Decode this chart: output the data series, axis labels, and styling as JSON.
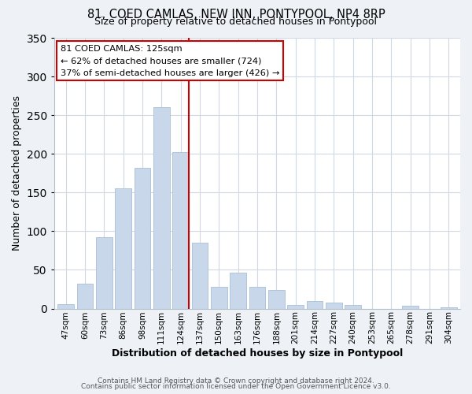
{
  "title": "81, COED CAMLAS, NEW INN, PONTYPOOL, NP4 8RP",
  "subtitle": "Size of property relative to detached houses in Pontypool",
  "xlabel": "Distribution of detached houses by size in Pontypool",
  "ylabel": "Number of detached properties",
  "bar_color": "#c8d8ea",
  "bar_edge_color": "#a8c0d4",
  "categories": [
    "47sqm",
    "60sqm",
    "73sqm",
    "86sqm",
    "98sqm",
    "111sqm",
    "124sqm",
    "137sqm",
    "150sqm",
    "163sqm",
    "176sqm",
    "188sqm",
    "201sqm",
    "214sqm",
    "227sqm",
    "240sqm",
    "253sqm",
    "265sqm",
    "278sqm",
    "291sqm",
    "304sqm"
  ],
  "values": [
    6,
    32,
    92,
    155,
    182,
    260,
    202,
    85,
    28,
    46,
    28,
    24,
    5,
    10,
    8,
    5,
    0,
    0,
    4,
    0,
    2
  ],
  "vline_index": 6,
  "vline_color": "#cc0000",
  "ylim": [
    0,
    350
  ],
  "yticks": [
    0,
    50,
    100,
    150,
    200,
    250,
    300,
    350
  ],
  "annotation_title": "81 COED CAMLAS: 125sqm",
  "annotation_line1": "← 62% of detached houses are smaller (724)",
  "annotation_line2": "37% of semi-detached houses are larger (426) →",
  "box_edge_color": "#cc0000",
  "footer1": "Contains HM Land Registry data © Crown copyright and database right 2024.",
  "footer2": "Contains public sector information licensed under the Open Government Licence v3.0.",
  "background_color": "#eef2f6",
  "plot_bg_color": "#ffffff",
  "grid_color": "#d0d8e4"
}
